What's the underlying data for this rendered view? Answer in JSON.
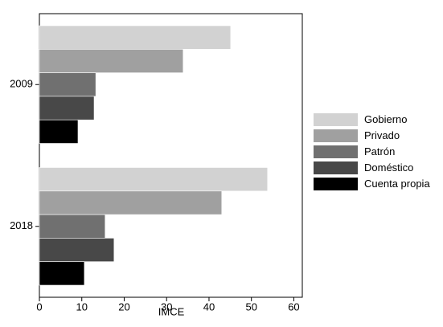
{
  "chart_data": {
    "type": "bar",
    "orientation": "horizontal",
    "xlabel": "IMCE",
    "categories": [
      "2009",
      "2018"
    ],
    "series": [
      {
        "name": "Gobierno",
        "color": "#d2d2d2",
        "values": [
          45.1,
          53.8
        ]
      },
      {
        "name": "Privado",
        "color": "#a0a0a0",
        "values": [
          33.9,
          43.0
        ]
      },
      {
        "name": "Patrón",
        "color": "#707070",
        "values": [
          13.3,
          15.5
        ]
      },
      {
        "name": "Doméstico",
        "color": "#484848",
        "values": [
          12.9,
          17.6
        ]
      },
      {
        "name": "Cuenta propia",
        "color": "#000000",
        "values": [
          9.1,
          10.6
        ]
      }
    ],
    "xlim": [
      0,
      62
    ],
    "xticks": [
      0,
      10,
      20,
      30,
      40,
      50,
      60
    ],
    "grid": false,
    "legend": "right"
  }
}
